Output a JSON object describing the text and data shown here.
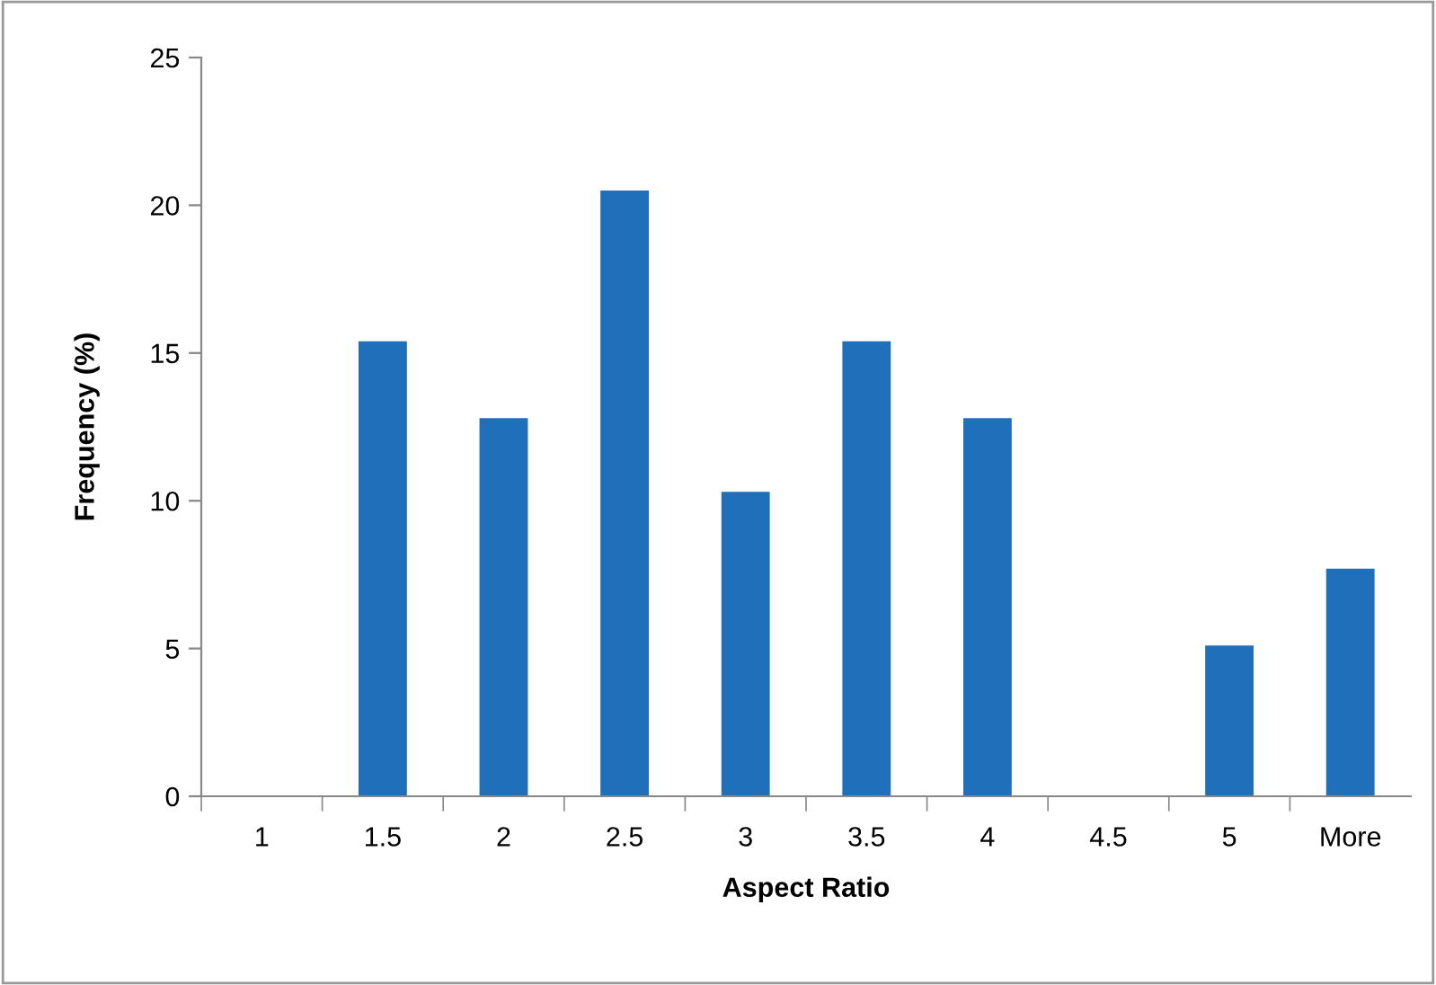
{
  "chart_data": {
    "type": "bar",
    "xlabel": "Aspect Ratio",
    "ylabel": "Frequency (%)",
    "categories": [
      "1",
      "1.5",
      "2",
      "2.5",
      "3",
      "3.5",
      "4",
      "4.5",
      "5",
      "More"
    ],
    "values": [
      0,
      15.4,
      12.8,
      20.5,
      10.3,
      15.4,
      12.8,
      0,
      5.1,
      7.7
    ],
    "color": "#1f6fbb",
    "ylim": [
      0,
      25
    ],
    "yticks": [
      0,
      5,
      10,
      15,
      20,
      25
    ],
    "grid": false,
    "legend": false
  }
}
